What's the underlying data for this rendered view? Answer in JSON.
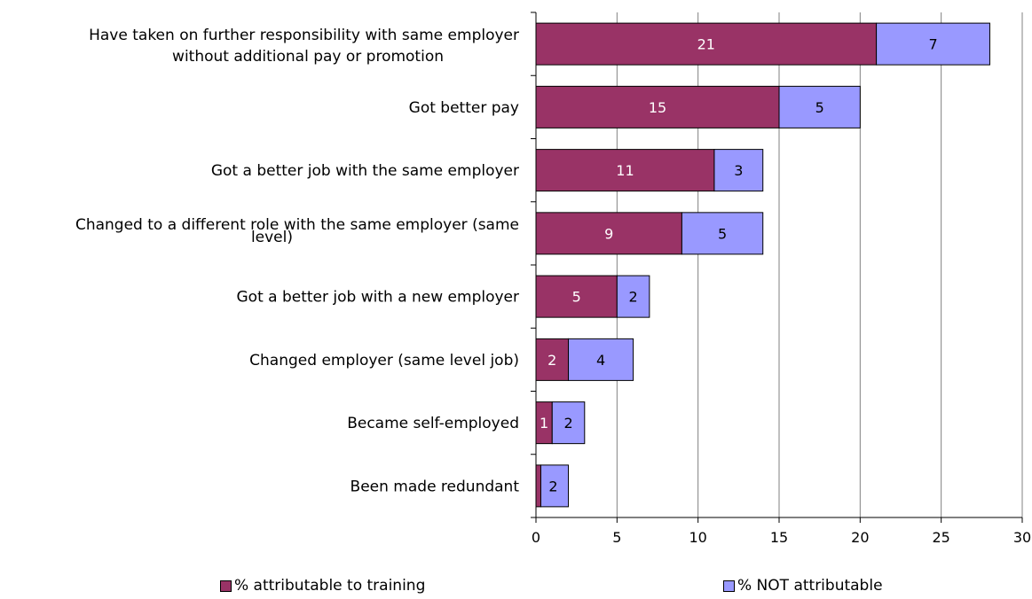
{
  "chart_data": {
    "type": "bar",
    "orientation": "horizontal",
    "stacked": true,
    "categories": [
      "Have taken on further responsibility with same employer\nwithout additional pay or promotion",
      "Got better pay",
      "Got a better job with the same employer",
      "Changed to a different role with the same employer (same\nlevel)",
      "Got a better job with a new employer",
      "Changed employer (same level job)",
      "Became self-employed",
      "Been made redundant"
    ],
    "series": [
      {
        "name": "% attributable to training",
        "color": "#993366",
        "values": [
          21,
          15,
          11,
          9,
          5,
          2,
          1,
          0.3
        ],
        "labels": [
          "21",
          "15",
          "11",
          "9",
          "5",
          "2",
          "1",
          ""
        ]
      },
      {
        "name": "% NOT attributable",
        "color": "#9999ff",
        "values": [
          7,
          5,
          3,
          5,
          2,
          4,
          2,
          1.7
        ],
        "labels": [
          "7",
          "5",
          "3",
          "5",
          "2",
          "4",
          "2",
          "2"
        ]
      }
    ],
    "xlim": [
      0,
      30
    ],
    "xticks": [
      "0",
      "5",
      "10",
      "15",
      "20",
      "25",
      "30"
    ],
    "grid": "vertical",
    "legend_position": "bottom"
  }
}
